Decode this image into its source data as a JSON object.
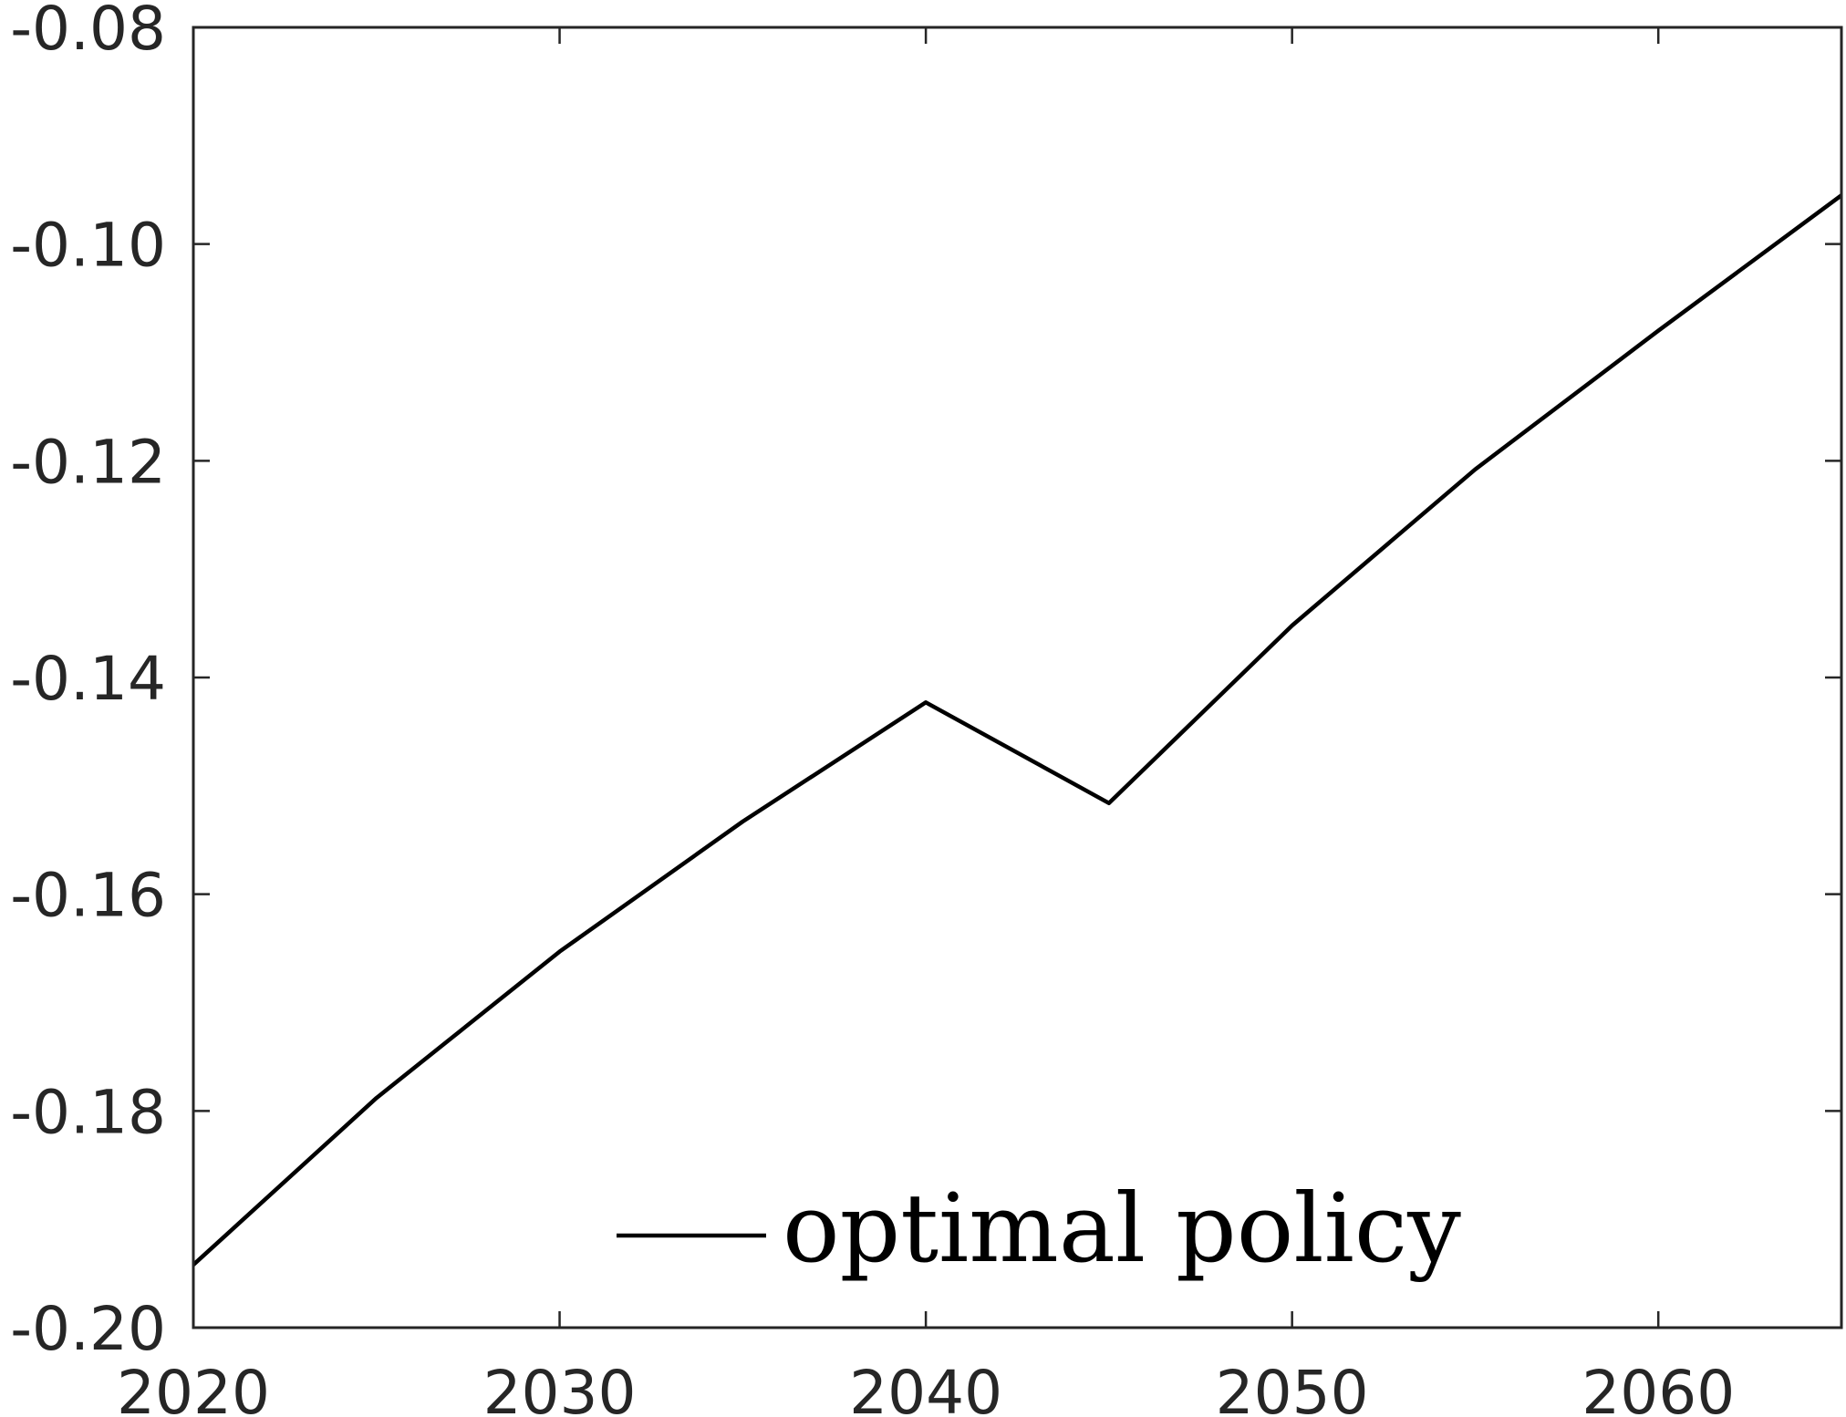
{
  "chart_data": {
    "type": "line",
    "title": "",
    "xlabel": "",
    "ylabel": "",
    "xlim": [
      2020,
      2065
    ],
    "ylim": [
      -0.2,
      -0.08
    ],
    "x_ticks": [
      2020,
      2030,
      2040,
      2050,
      2060
    ],
    "y_ticks": [
      -0.2,
      -0.18,
      -0.16,
      -0.14,
      -0.12,
      -0.1,
      -0.08
    ],
    "x_tick_labels": [
      "2020",
      "2030",
      "2040",
      "2050",
      "2060"
    ],
    "y_tick_labels": [
      "-0.20",
      "-0.18",
      "-0.16",
      "-0.14",
      "-0.12",
      "-0.10",
      "-0.08"
    ],
    "grid": false,
    "legend": {
      "position": "bottom-center",
      "box": false
    },
    "series": [
      {
        "name": "optimal policy",
        "color": "#000000",
        "x": [
          2020,
          2025,
          2030,
          2035,
          2040,
          2045,
          2050,
          2055,
          2060,
          2065
        ],
        "y": [
          -0.1942,
          -0.1788,
          -0.1653,
          -0.1533,
          -0.1423,
          -0.1516,
          -0.1352,
          -0.1208,
          -0.108,
          -0.0955
        ]
      }
    ]
  }
}
